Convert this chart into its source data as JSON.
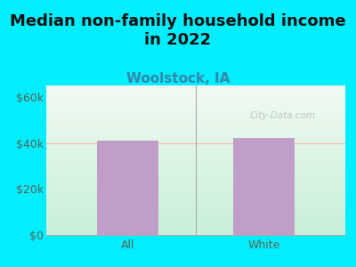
{
  "title": "Median non-family household income\nin 2022",
  "subtitle": "Woolstock, IA",
  "categories": [
    "All",
    "White"
  ],
  "values": [
    41000,
    42000
  ],
  "bar_color": "#bf9fc8",
  "title_fontsize": 13,
  "subtitle_fontsize": 11,
  "subtitle_color": "#3388aa",
  "title_color": "#111111",
  "tick_color": "#556655",
  "background_outer": "#00eeff",
  "background_inner_top": "#f2faf2",
  "background_inner_bottom": "#c8f0d8",
  "ylim": [
    0,
    65000
  ],
  "yticks": [
    0,
    20000,
    40000,
    60000
  ],
  "ytick_labels": [
    "$0",
    "$20k",
    "$40k",
    "$60k"
  ],
  "watermark": "City-Data.com"
}
